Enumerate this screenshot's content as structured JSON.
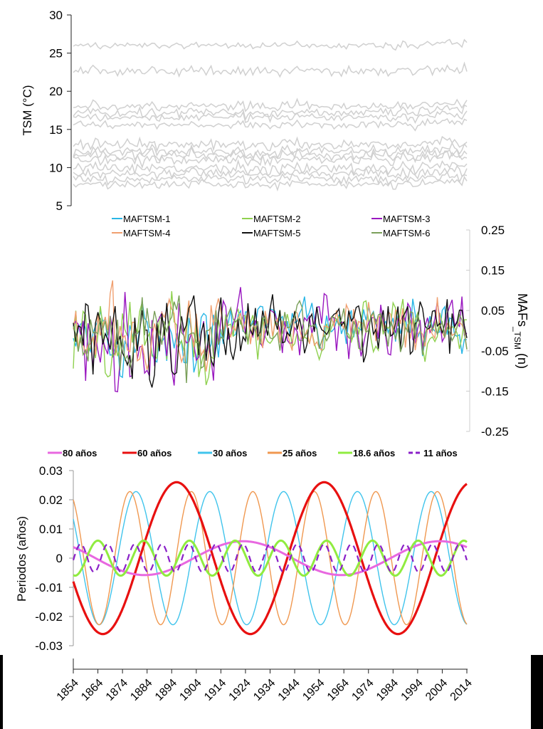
{
  "chart_data": [
    {
      "type": "line",
      "panel": "top",
      "ylabel": "TSM  (°C)",
      "ylim": [
        5,
        30
      ],
      "yticks": [
        "5",
        "10",
        "15",
        "20",
        "25",
        "30"
      ],
      "xlim": [
        1854,
        2014
      ],
      "series_color": "#d0d0d0",
      "series": [
        {
          "mean": 26.0,
          "noise": 0.35
        },
        {
          "mean": 22.6,
          "noise": 0.55
        },
        {
          "mean": 18.0,
          "noise": 0.5
        },
        {
          "mean": 17.2,
          "noise": 0.5
        },
        {
          "mean": 16.6,
          "noise": 0.45
        },
        {
          "mean": 15.6,
          "noise": 0.4
        },
        {
          "mean": 13.0,
          "noise": 0.6
        },
        {
          "mean": 12.1,
          "noise": 0.6
        },
        {
          "mean": 11.6,
          "noise": 0.6
        },
        {
          "mean": 11.0,
          "noise": 0.6
        },
        {
          "mean": 9.9,
          "noise": 0.6
        },
        {
          "mean": 9.2,
          "noise": 0.6
        },
        {
          "mean": 8.5,
          "noise": 0.55
        },
        {
          "mean": 7.8,
          "noise": 0.5
        }
      ]
    },
    {
      "type": "line",
      "panel": "middle",
      "ylabel": "MAFs",
      "ylabel_sub": "_TSM",
      "ylabel_suffix": " (n)",
      "ylim": [
        -0.25,
        0.25
      ],
      "yticks": [
        "-0.25",
        "-0.15",
        "-0.05",
        "0.05",
        "0.15",
        "0.25"
      ],
      "xlim": [
        1854,
        2014
      ],
      "legend_position": "top",
      "series": [
        {
          "name": "MAFTSM-1",
          "color": "#29b6e6",
          "noise": 0.05
        },
        {
          "name": "MAFTSM-2",
          "color": "#8fd14f",
          "noise": 0.06
        },
        {
          "name": "MAFTSM-3",
          "color": "#9a18c0",
          "noise": 0.06
        },
        {
          "name": "MAFTSM-4",
          "color": "#f0a070",
          "noise": 0.055
        },
        {
          "name": "MAFTSM-5",
          "color": "#111111",
          "noise": 0.06
        },
        {
          "name": "MAFTSM-6",
          "color": "#7aa05a",
          "noise": 0.05
        }
      ]
    },
    {
      "type": "line",
      "panel": "bottom",
      "ylabel": "Periodos  (años)",
      "ylim": [
        -0.03,
        0.03
      ],
      "yticks": [
        "-0.03",
        "-0.02",
        "-0.01",
        "0",
        "0.01",
        "0.02",
        "0.03"
      ],
      "xlim": [
        1854,
        2014
      ],
      "xticks": [
        "1854",
        "1864",
        "1874",
        "1884",
        "1894",
        "1904",
        "1914",
        "1924",
        "1934",
        "1944",
        "1954",
        "1964",
        "1974",
        "1984",
        "1994",
        "2004",
        "2014"
      ],
      "legend_position": "top",
      "series": [
        {
          "name": "80 años",
          "color": "#e868e0",
          "period": 80,
          "amplitude": 0.0058,
          "peak_year": 1923,
          "width": 3,
          "dash": false
        },
        {
          "name": "60 años",
          "color": "#e81010",
          "period": 60,
          "amplitude": 0.026,
          "peak_year": 1896,
          "width": 3.2,
          "dash": false
        },
        {
          "name": "30 años",
          "color": "#40c4ec",
          "period": 30,
          "amplitude": 0.0228,
          "peak_year": 1879.5,
          "width": 1.4,
          "dash": false
        },
        {
          "name": "25 años",
          "color": "#f09850",
          "period": 25,
          "amplitude": 0.0228,
          "peak_year": 1877,
          "width": 1.4,
          "dash": false
        },
        {
          "name": "18.6 años",
          "color": "#90ec40",
          "period": 18.6,
          "amplitude": 0.006,
          "peak_year": 1864,
          "width": 3,
          "dash": false
        },
        {
          "name": "11 años",
          "color": "#8a20c8",
          "period": 11,
          "amplitude": 0.0048,
          "peak_year": 1868,
          "width": 2.2,
          "dash": true
        }
      ]
    }
  ]
}
